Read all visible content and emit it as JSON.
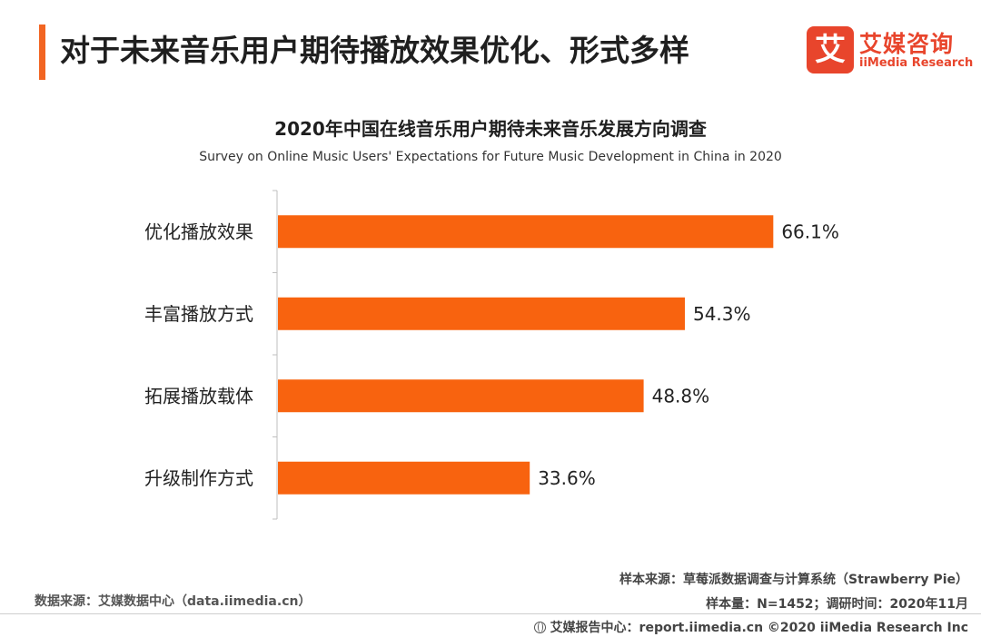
{
  "header": {
    "title": "对于未来音乐用户期待播放效果优化、形式多样"
  },
  "logo": {
    "mark": "艾",
    "name_cn": "艾媒咨询",
    "name_en": "iiMedia Research",
    "color": "#e8452c"
  },
  "colors": {
    "accent": "#f26522",
    "bar": "#f8630f"
  },
  "chart_data": {
    "type": "bar",
    "orientation": "horizontal",
    "title": "2020年中国在线音乐用户期待未来音乐发展方向调查",
    "subtitle": "Survey on Online Music Users' Expectations for Future Music Development in China in 2020",
    "categories": [
      "优化播放效果",
      "丰富播放方式",
      "拓展播放载体",
      "升级制作方式"
    ],
    "values": [
      66.1,
      54.3,
      48.8,
      33.6
    ],
    "value_labels": [
      "66.1%",
      "54.3%",
      "48.8%",
      "33.6%"
    ],
    "unit": "%",
    "xlim": [
      0,
      80
    ],
    "grid": false,
    "legend": "none"
  },
  "footer": {
    "source_left": "数据来源：艾媒数据中心（data.iimedia.cn）",
    "sample_source": "样本来源：草莓派数据调查与计算系统（Strawberry Pie）",
    "sample_info": "样本量：N=1452；调研时间：2020年11月",
    "copyright": "艾媒报告中心：report.iimedia.cn ©2020  iiMedia Research  Inc"
  }
}
